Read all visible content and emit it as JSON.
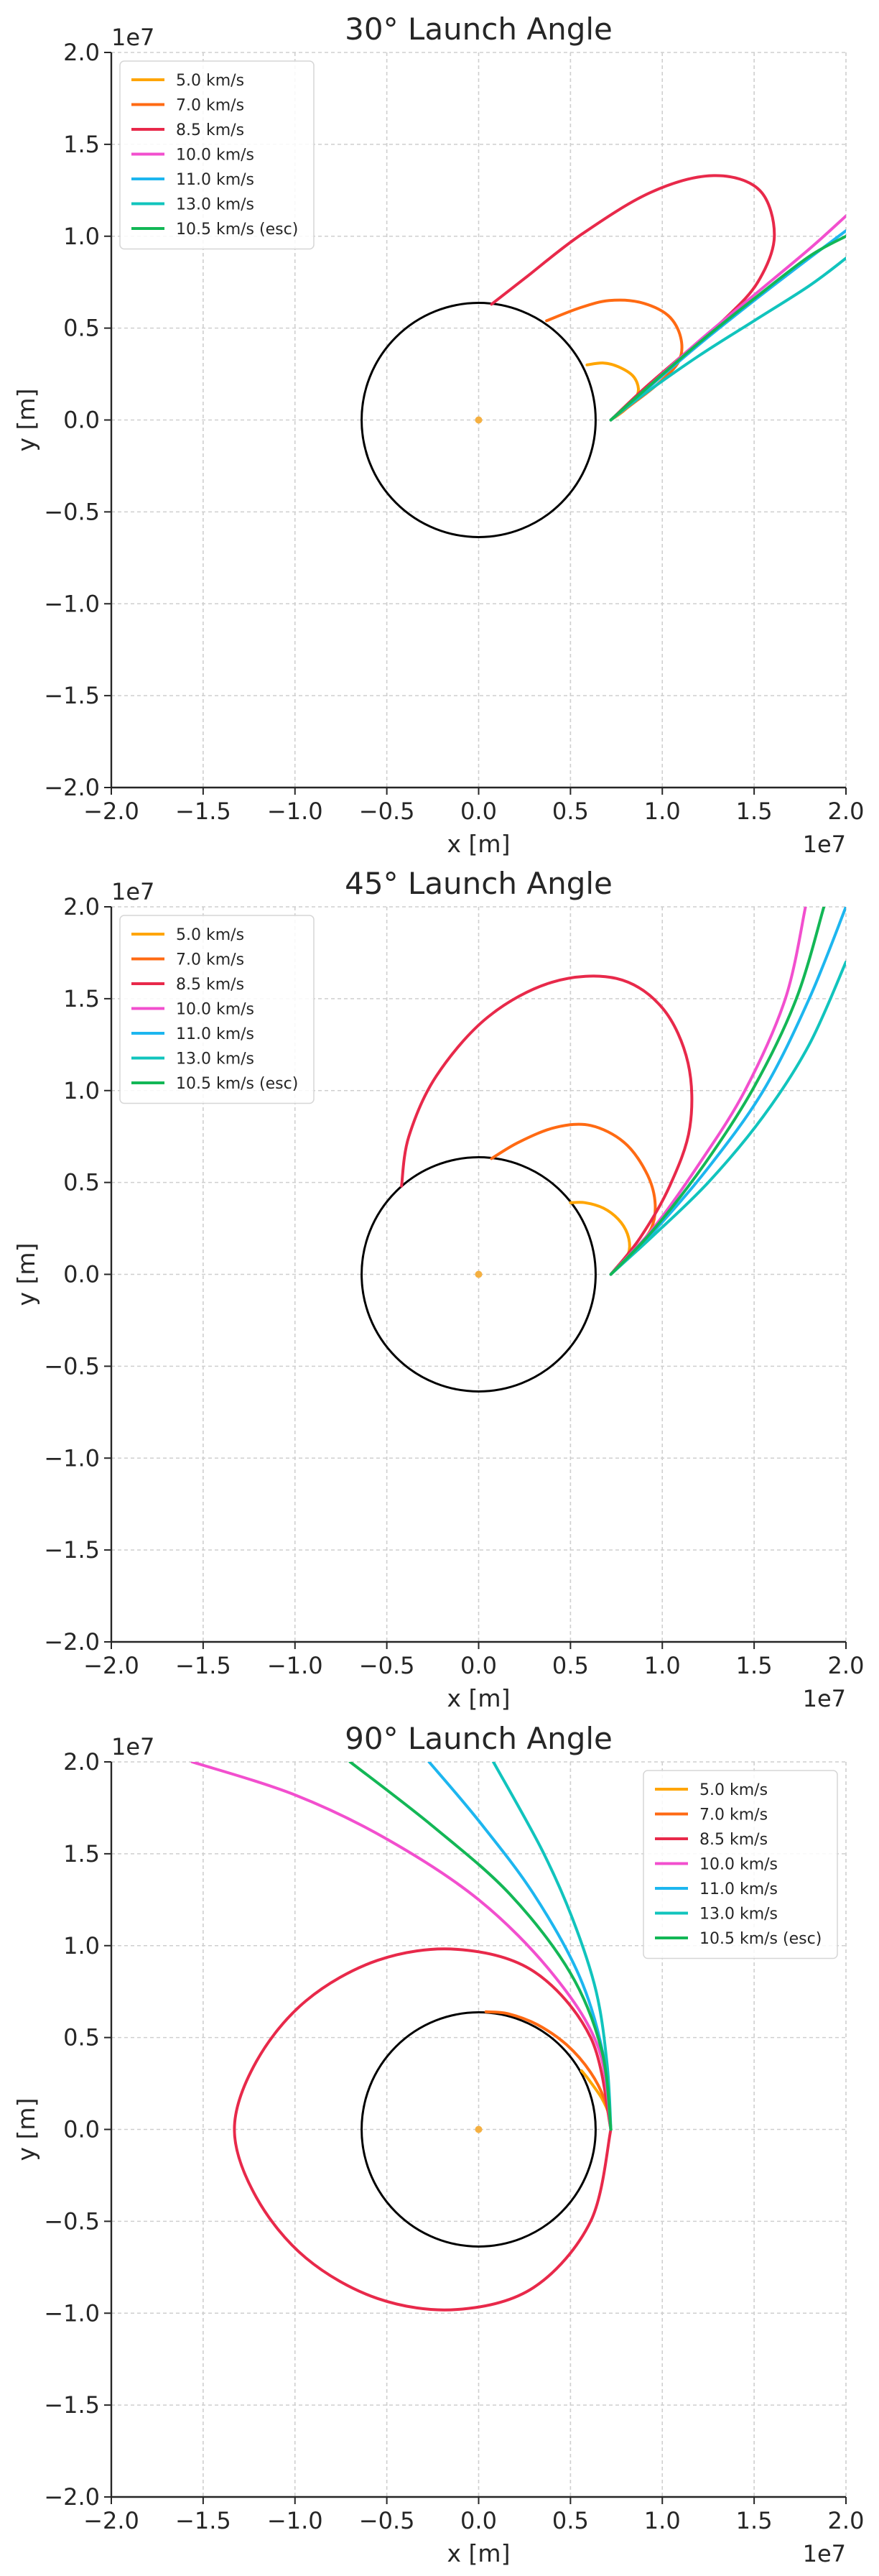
{
  "chart_data": [
    {
      "type": "line",
      "title": "30° Launch Angle",
      "xlabel": "x [m]",
      "ylabel": "y [m]",
      "xlim": [
        -20000000.0,
        20000000.0
      ],
      "ylim": [
        -20000000.0,
        20000000.0
      ],
      "xticks": [
        "−2.0",
        "−1.5",
        "−1.0",
        "−0.5",
        "0.0",
        "0.5",
        "1.0",
        "1.5",
        "2.0"
      ],
      "yticks": [
        "−2.0",
        "−1.5",
        "−1.0",
        "−0.5",
        "0.0",
        "0.5",
        "1.0",
        "1.5",
        "2.0"
      ],
      "x_offset_label": "1e7",
      "y_offset_label": "1e7",
      "grid": true,
      "legend_position": "upper-left",
      "planet_radius": 6371000.0,
      "series": [
        {
          "name": "5.0 km/s",
          "color": "#ffa500",
          "x": [
            7200000.0,
            7900000.0,
            8500000.0,
            8700000.0,
            8400000.0,
            7600000.0,
            6800000.0,
            5900000.0
          ],
          "y": [
            0.0,
            500000.0,
            1100000.0,
            1700000.0,
            2400000.0,
            2900000.0,
            3100000.0,
            3000000.0
          ]
        },
        {
          "name": "7.0 km/s",
          "color": "#ff6a13",
          "x": [
            7200000.0,
            8400000.0,
            9800000.0,
            10900000.0,
            11000000.0,
            10300000.0,
            8800000.0,
            7100000.0,
            5500000.0,
            3700000.0
          ],
          "y": [
            0.0,
            900000.0,
            2000000.0,
            3200000.0,
            4500000.0,
            5700000.0,
            6400000.0,
            6500000.0,
            6100000.0,
            5400000.0
          ]
        },
        {
          "name": "8.5 km/s",
          "color": "#e8294a",
          "x": [
            7200000.0,
            9000000.0,
            11200000.0,
            13400000.0,
            15200000.0,
            16100000.0,
            15300000.0,
            12800000.0,
            9400000.0,
            5600000.0,
            2500000.0,
            700000.0
          ],
          "y": [
            0.0,
            1700000.0,
            3600000.0,
            5500000.0,
            7500000.0,
            10000000.0,
            12500000.0,
            13300000.0,
            12400000.0,
            10100000.0,
            7700000.0,
            6300000.0
          ]
        },
        {
          "name": "10.0 km/s",
          "color": "#f24fce",
          "x": [
            7200000.0,
            9000000.0,
            12000000.0,
            15000000.0,
            18000000.0,
            20000000.0
          ],
          "y": [
            0.0,
            1600000.0,
            4300000.0,
            6800000.0,
            9300000.0,
            11100000.0
          ]
        },
        {
          "name": "11.0 km/s",
          "color": "#1db6ef",
          "x": [
            7200000.0,
            9000000.0,
            12000000.0,
            15000000.0,
            18000000.0,
            20000000.0
          ],
          "y": [
            0.0,
            1550000.0,
            4100000.0,
            6500000.0,
            8800000.0,
            10300000.0
          ]
        },
        {
          "name": "13.0 km/s",
          "color": "#11c4bd",
          "x": [
            7200000.0,
            9000000.0,
            12000000.0,
            15000000.0,
            18000000.0,
            20000000.0
          ],
          "y": [
            0.0,
            1400000.0,
            3500000.0,
            5400000.0,
            7300000.0,
            8800000.0
          ]
        },
        {
          "name": "10.5 km/s (esc)",
          "color": "#13b756",
          "x": [
            7200000.0,
            9000000.0,
            12000000.0,
            15000000.0,
            18000000.0,
            20000000.0
          ],
          "y": [
            0.0,
            1600000.0,
            4200000.0,
            6600000.0,
            8900000.0,
            10000000.0
          ]
        }
      ]
    },
    {
      "type": "line",
      "title": "45° Launch Angle",
      "xlabel": "x [m]",
      "ylabel": "y [m]",
      "xlim": [
        -20000000.0,
        20000000.0
      ],
      "ylim": [
        -20000000.0,
        20000000.0
      ],
      "xticks": [
        "−2.0",
        "−1.5",
        "−1.0",
        "−0.5",
        "0.0",
        "0.5",
        "1.0",
        "1.5",
        "2.0"
      ],
      "yticks": [
        "−2.0",
        "−1.5",
        "−1.0",
        "−0.5",
        "0.0",
        "0.5",
        "1.0",
        "1.5",
        "2.0"
      ],
      "x_offset_label": "1e7",
      "y_offset_label": "1e7",
      "grid": true,
      "legend_position": "upper-left",
      "planet_radius": 6371000.0,
      "series": [
        {
          "name": "5.0 km/s",
          "color": "#ffa500",
          "x": [
            7200000.0,
            7800000.0,
            8200000.0,
            8100000.0,
            7600000.0,
            6800000.0,
            5800000.0,
            5000000.0
          ],
          "y": [
            0.0,
            600000.0,
            1300000.0,
            2200000.0,
            3000000.0,
            3600000.0,
            3900000.0,
            3900000.0
          ]
        },
        {
          "name": "7.0 km/s",
          "color": "#ff6a13",
          "x": [
            7200000.0,
            8300000.0,
            9400000.0,
            9600000.0,
            9100000.0,
            7900000.0,
            6100000.0,
            4200000.0,
            2200000.0,
            700000.0
          ],
          "y": [
            0.0,
            1100000.0,
            2500000.0,
            4000000.0,
            5600000.0,
            7200000.0,
            8100000.0,
            8000000.0,
            7200000.0,
            6300000.0
          ]
        },
        {
          "name": "8.5 km/s",
          "color": "#e8294a",
          "x": [
            7200000.0,
            8800000.0,
            10400000.0,
            11500000.0,
            11400000.0,
            10000000.0,
            7500000.0,
            4000000.0,
            500000.0,
            -2300000.0,
            -3800000.0,
            -4200000.0
          ],
          "y": [
            0.0,
            2000000.0,
            4800000.0,
            8000000.0,
            11500000.0,
            14500000.0,
            16100000.0,
            15900000.0,
            14000000.0,
            10800000.0,
            7500000.0,
            4800000.0
          ]
        },
        {
          "name": "10.0 km/s",
          "color": "#f24fce",
          "x": [
            7200000.0,
            9500000.0,
            12000000.0,
            14500000.0,
            16700000.0,
            17800000.0
          ],
          "y": [
            0.0,
            2500000.0,
            6000000.0,
            10000000.0,
            15000000.0,
            20000000.0
          ]
        },
        {
          "name": "11.0 km/s",
          "color": "#1db6ef",
          "x": [
            7200000.0,
            9500000.0,
            12500000.0,
            15500000.0,
            18000000.0,
            20000000.0
          ],
          "y": [
            0.0,
            2300000.0,
            5800000.0,
            10000000.0,
            15000000.0,
            20000000.0
          ]
        },
        {
          "name": "13.0 km/s",
          "color": "#11c4bd",
          "x": [
            7200000.0,
            9500000.0,
            12500000.0,
            15500000.0,
            18000000.0,
            20000000.0
          ],
          "y": [
            0.0,
            2100000.0,
            5000000.0,
            8600000.0,
            12500000.0,
            17000000.0
          ]
        },
        {
          "name": "10.5 km/s (esc)",
          "color": "#13b756",
          "x": [
            7200000.0,
            9500000.0,
            12300000.0,
            15000000.0,
            17300000.0,
            18800000.0
          ],
          "y": [
            0.0,
            2400000.0,
            6000000.0,
            10200000.0,
            15000000.0,
            20000000.0
          ]
        }
      ]
    },
    {
      "type": "line",
      "title": "90° Launch Angle",
      "xlabel": "x [m]",
      "ylabel": "y [m]",
      "xlim": [
        -20000000.0,
        20000000.0
      ],
      "ylim": [
        -20000000.0,
        20000000.0
      ],
      "xticks": [
        "−2.0",
        "−1.5",
        "−1.0",
        "−0.5",
        "0.0",
        "0.5",
        "1.0",
        "1.5",
        "2.0"
      ],
      "yticks": [
        "−2.0",
        "−1.5",
        "−1.0",
        "−0.5",
        "0.0",
        "0.5",
        "1.0",
        "1.5",
        "2.0"
      ],
      "x_offset_label": "1e7",
      "y_offset_label": "1e7",
      "grid": true,
      "legend_position": "upper-right",
      "planet_radius": 6371000.0,
      "series": [
        {
          "name": "5.0 km/s",
          "color": "#ffa500",
          "x": [
            7200000.0,
            7100000.0,
            6700000.0,
            6000000.0,
            5600000.0
          ],
          "y": [
            0.0,
            800000.0,
            1700000.0,
            2700000.0,
            3200000.0
          ]
        },
        {
          "name": "7.0 km/s",
          "color": "#ff6a13",
          "x": [
            7200000.0,
            6900000.0,
            6100000.0,
            4800000.0,
            3200000.0,
            1600000.0,
            400000.0
          ],
          "y": [
            0.0,
            1500000.0,
            3100000.0,
            4600000.0,
            5700000.0,
            6300000.0,
            6400000.0
          ]
        },
        {
          "name": "8.5 km/s",
          "color": "#e8294a",
          "x": [
            7200000.0,
            6100000.0,
            3000000.0,
            -1200000.0,
            -5500000.0,
            -9400000.0,
            -12100000.0,
            -13300000.0,
            -12100000.0,
            -9400000.0,
            -5500000.0,
            -1200000.0,
            3000000.0,
            6100000.0,
            7200000.0
          ],
          "y": [
            0.0,
            5000000.0,
            8600000.0,
            9800000.0,
            9200000.0,
            7000000.0,
            3700000.0,
            0.0,
            -3700000.0,
            -7000000.0,
            -9200000.0,
            -9800000.0,
            -8600000.0,
            -5000000.0,
            0.0
          ]
        },
        {
          "name": "10.0 km/s",
          "color": "#f24fce",
          "x": [
            7200000.0,
            6500000.0,
            4000000.0,
            0.0,
            -5000000.0,
            -10000000.0,
            -15600000.0
          ],
          "y": [
            0.0,
            4500000.0,
            8500000.0,
            12500000.0,
            15800000.0,
            18200000.0,
            20000000.0
          ]
        },
        {
          "name": "11.0 km/s",
          "color": "#1db6ef",
          "x": [
            7200000.0,
            6800000.0,
            5500000.0,
            3000000.0,
            0.0,
            -2700000.0
          ],
          "y": [
            0.0,
            4000000.0,
            8300000.0,
            12800000.0,
            16800000.0,
            20000000.0
          ]
        },
        {
          "name": "13.0 km/s",
          "color": "#11c4bd",
          "x": [
            7200000.0,
            7000000.0,
            6400000.0,
            5100000.0,
            3400000.0,
            800000.0
          ],
          "y": [
            0.0,
            3500000.0,
            7500000.0,
            11500000.0,
            15300000.0,
            20000000.0
          ]
        },
        {
          "name": "10.5 km/s (esc)",
          "color": "#13b756",
          "x": [
            7200000.0,
            6700000.0,
            5000000.0,
            1700000.0,
            -2500000.0,
            -7000000.0
          ],
          "y": [
            0.0,
            4300000.0,
            8500000.0,
            12800000.0,
            16500000.0,
            20000000.0
          ]
        }
      ]
    }
  ]
}
